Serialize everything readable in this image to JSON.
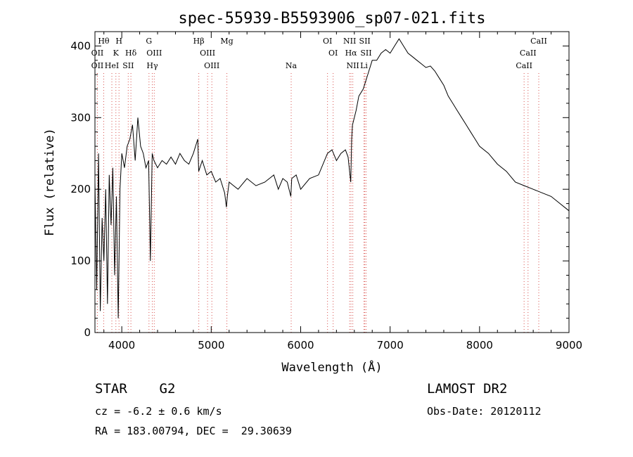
{
  "chart_data": {
    "type": "line",
    "title": "spec-55939-B5593906_sp07-021.fits",
    "xlabel": "Wavelength (Å)",
    "ylabel": "Flux (relative)",
    "xlim": [
      3700,
      9000
    ],
    "ylim": [
      0,
      420
    ],
    "x_ticks": [
      4000,
      5000,
      6000,
      7000,
      8000,
      9000
    ],
    "y_ticks": [
      0,
      100,
      200,
      300,
      400
    ],
    "grid": false,
    "line_color": "#000000",
    "marker_color": "#d9534f",
    "series": [
      {
        "x": [
          3700,
          3720,
          3740,
          3760,
          3780,
          3800,
          3820,
          3840,
          3860,
          3880,
          3900,
          3920,
          3940,
          3960,
          3980,
          4000,
          4030,
          4060,
          4090,
          4120,
          4150,
          4180,
          4210,
          4240,
          4270,
          4300,
          4320,
          4340,
          4360,
          4400,
          4450,
          4500,
          4550,
          4600,
          4650,
          4700,
          4750,
          4800,
          4850,
          4860,
          4900,
          4950,
          5000,
          5050,
          5100,
          5150,
          5170,
          5180,
          5200,
          5250,
          5300,
          5400,
          5500,
          5600,
          5700,
          5750,
          5800,
          5850,
          5890,
          5900,
          5950,
          6000,
          6100,
          6200,
          6300,
          6350,
          6400,
          6450,
          6500,
          6530,
          6560,
          6570,
          6580,
          6600,
          6620,
          6650,
          6700,
          6750,
          6800,
          6850,
          6900,
          6950,
          7000,
          7050,
          7100,
          7150,
          7200,
          7250,
          7300,
          7350,
          7400,
          7450,
          7500,
          7550,
          7600,
          7650,
          7700,
          7750,
          7800,
          7850,
          7900,
          7950,
          8000,
          8100,
          8200,
          8300,
          8400,
          8500,
          8600,
          8700,
          8800,
          8900,
          8950,
          9000
        ],
        "y": [
          210,
          60,
          250,
          30,
          160,
          100,
          200,
          40,
          220,
          150,
          230,
          80,
          190,
          20,
          200,
          250,
          230,
          260,
          270,
          290,
          240,
          300,
          260,
          250,
          230,
          240,
          100,
          250,
          240,
          230,
          240,
          235,
          245,
          235,
          250,
          240,
          235,
          250,
          270,
          225,
          240,
          220,
          225,
          210,
          215,
          195,
          175,
          190,
          210,
          205,
          200,
          215,
          205,
          210,
          220,
          200,
          215,
          210,
          190,
          215,
          220,
          200,
          215,
          220,
          250,
          255,
          240,
          250,
          255,
          245,
          210,
          270,
          290,
          300,
          310,
          330,
          340,
          360,
          380,
          380,
          390,
          395,
          390,
          400,
          410,
          400,
          390,
          385,
          380,
          375,
          370,
          372,
          365,
          355,
          345,
          330,
          320,
          310,
          300,
          290,
          280,
          270,
          260,
          250,
          235,
          225,
          210,
          205,
          200,
          195,
          190,
          180,
          175,
          170
        ]
      }
    ],
    "line_markers": [
      {
        "label": "Hθ",
        "x": 3798,
        "row": 0
      },
      {
        "label": "OII",
        "x": 3727,
        "row": 1
      },
      {
        "label": "OII",
        "x": 3727,
        "row": 2
      },
      {
        "label": "H",
        "x": 3969,
        "row": 0
      },
      {
        "label": "K",
        "x": 3934,
        "row": 1
      },
      {
        "label": "HeI",
        "x": 3889,
        "row": 2
      },
      {
        "label": "Hδ",
        "x": 4102,
        "row": 1
      },
      {
        "label": "SII",
        "x": 4072,
        "row": 2
      },
      {
        "label": "G",
        "x": 4304,
        "row": 0
      },
      {
        "label": "OIII",
        "x": 4363,
        "row": 1
      },
      {
        "label": "Hγ",
        "x": 4341,
        "row": 2
      },
      {
        "label": "Hβ",
        "x": 4861,
        "row": 0
      },
      {
        "label": "OIII",
        "x": 4959,
        "row": 1
      },
      {
        "label": "OIII",
        "x": 5007,
        "row": 2
      },
      {
        "label": "Mg",
        "x": 5175,
        "row": 0
      },
      {
        "label": "Na",
        "x": 5894,
        "row": 2
      },
      {
        "label": "OI",
        "x": 6300,
        "row": 0
      },
      {
        "label": "OI",
        "x": 6363,
        "row": 1
      },
      {
        "label": "NII",
        "x": 6548,
        "row": 0
      },
      {
        "label": "Hα",
        "x": 6563,
        "row": 1
      },
      {
        "label": "NII",
        "x": 6583,
        "row": 2
      },
      {
        "label": "SII",
        "x": 6717,
        "row": 0
      },
      {
        "label": "SII",
        "x": 6731,
        "row": 1
      },
      {
        "label": "Li",
        "x": 6708,
        "row": 2
      },
      {
        "label": "CaII",
        "x": 8662,
        "row": 0
      },
      {
        "label": "CaII",
        "x": 8542,
        "row": 1
      },
      {
        "label": "CaII",
        "x": 8498,
        "row": 2
      }
    ]
  },
  "info": {
    "class": "STAR    G2",
    "survey": "LAMOST DR2",
    "cz": "cz = -6.2 ± 0.6 km/s",
    "obsdate": "Obs-Date: 20120112",
    "radec": "RA = 183.00794, DEC =  29.30639"
  }
}
